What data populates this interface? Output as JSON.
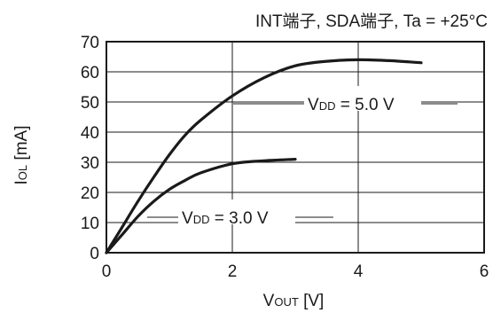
{
  "chart_data": {
    "type": "line",
    "title": "INT端子, SDA端子, Ta = +25°C",
    "xlabel": {
      "main": "V",
      "sub": "OUT",
      "rest": " [V]"
    },
    "ylabel": {
      "main": "I",
      "sub": "OL",
      "rest": " [mA]"
    },
    "xlim": [
      0,
      6
    ],
    "ylim": [
      0,
      70
    ],
    "xticks": [
      0,
      2,
      4,
      6
    ],
    "yticks": [
      0,
      10,
      20,
      30,
      40,
      50,
      60,
      70
    ],
    "xtick_labels": [
      "0",
      "2",
      "4",
      "6"
    ],
    "ytick_labels": [
      "0",
      "10",
      "20",
      "30",
      "40",
      "50",
      "60",
      "70"
    ],
    "grid": true,
    "series": [
      {
        "label": {
          "main": "V",
          "sub": "DD",
          "rest": " = 5.0 V"
        },
        "x": [
          0,
          0.25,
          0.5,
          0.75,
          1.0,
          1.25,
          1.5,
          2.0,
          2.5,
          3.0,
          3.5,
          4.0,
          4.5,
          5.0
        ],
        "y": [
          0,
          8.5,
          17,
          25,
          32.5,
          39,
          44,
          52,
          58,
          62,
          63.5,
          64,
          63.7,
          63
        ]
      },
      {
        "label": {
          "main": "V",
          "sub": "DD",
          "rest": " = 3.0 V"
        },
        "x": [
          0,
          0.25,
          0.5,
          0.75,
          1.0,
          1.25,
          1.5,
          2.0,
          2.5,
          3.0
        ],
        "y": [
          0,
          6,
          12,
          17,
          21,
          24,
          26.5,
          29.5,
          30.5,
          31
        ]
      }
    ]
  }
}
